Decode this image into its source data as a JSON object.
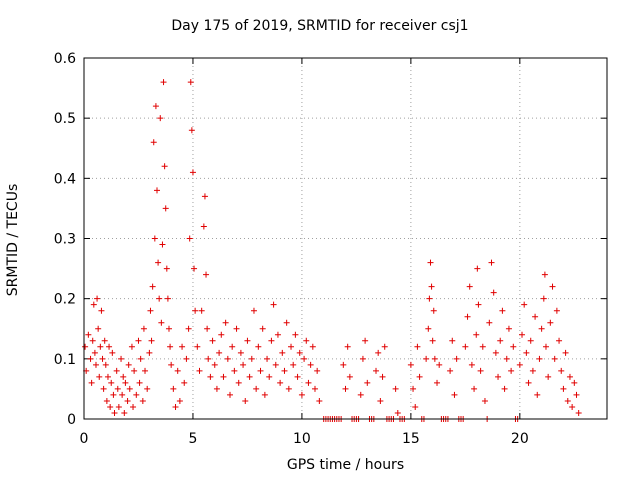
{
  "chart_data": {
    "type": "scatter",
    "title": "Day 175 of 2019, SRMTID for receiver csj1",
    "xlabel": "GPS time / hours",
    "ylabel": "SRMTID / TECUs",
    "xlim": [
      0,
      24
    ],
    "ylim": [
      0,
      0.6
    ],
    "xticks": [
      0,
      5,
      10,
      15,
      20
    ],
    "yticks": [
      0,
      0.1,
      0.2,
      0.3,
      0.4,
      0.5,
      0.6
    ],
    "xtick_labels": [
      "0",
      "5",
      "10",
      "15",
      "20"
    ],
    "ytick_labels": [
      "0",
      "0.1",
      "0.2",
      "0.3",
      "0.4",
      "0.5",
      "0.6"
    ],
    "grid": true,
    "marker": "+",
    "color": "#e00000",
    "series": [
      {
        "name": "SRMTID",
        "points": [
          [
            0.05,
            0.12
          ],
          [
            0.1,
            0.08
          ],
          [
            0.2,
            0.14
          ],
          [
            0.3,
            0.1
          ],
          [
            0.35,
            0.06
          ],
          [
            0.4,
            0.13
          ],
          [
            0.45,
            0.19
          ],
          [
            0.5,
            0.11
          ],
          [
            0.55,
            0.09
          ],
          [
            0.6,
            0.2
          ],
          [
            0.65,
            0.15
          ],
          [
            0.7,
            0.07
          ],
          [
            0.75,
            0.12
          ],
          [
            0.8,
            0.18
          ],
          [
            0.85,
            0.1
          ],
          [
            0.9,
            0.05
          ],
          [
            0.95,
            0.13
          ],
          [
            1.0,
            0.09
          ],
          [
            1.05,
            0.03
          ],
          [
            1.1,
            0.07
          ],
          [
            1.15,
            0.12
          ],
          [
            1.2,
            0.02
          ],
          [
            1.25,
            0.06
          ],
          [
            1.3,
            0.11
          ],
          [
            1.35,
            0.04
          ],
          [
            1.4,
            0.01
          ],
          [
            1.5,
            0.08
          ],
          [
            1.55,
            0.05
          ],
          [
            1.6,
            0.02
          ],
          [
            1.7,
            0.1
          ],
          [
            1.75,
            0.04
          ],
          [
            1.8,
            0.07
          ],
          [
            1.85,
            0.01
          ],
          [
            1.9,
            0.06
          ],
          [
            2.0,
            0.03
          ],
          [
            2.05,
            0.09
          ],
          [
            2.1,
            0.05
          ],
          [
            2.2,
            0.12
          ],
          [
            2.25,
            0.02
          ],
          [
            2.3,
            0.08
          ],
          [
            2.4,
            0.04
          ],
          [
            2.5,
            0.13
          ],
          [
            2.55,
            0.06
          ],
          [
            2.6,
            0.1
          ],
          [
            2.7,
            0.03
          ],
          [
            2.75,
            0.15
          ],
          [
            2.8,
            0.08
          ],
          [
            2.9,
            0.05
          ],
          [
            3.0,
            0.11
          ],
          [
            3.05,
            0.18
          ],
          [
            3.1,
            0.13
          ],
          [
            3.15,
            0.22
          ],
          [
            3.2,
            0.46
          ],
          [
            3.25,
            0.3
          ],
          [
            3.3,
            0.52
          ],
          [
            3.35,
            0.38
          ],
          [
            3.4,
            0.26
          ],
          [
            3.45,
            0.2
          ],
          [
            3.5,
            0.5
          ],
          [
            3.55,
            0.16
          ],
          [
            3.6,
            0.29
          ],
          [
            3.65,
            0.56
          ],
          [
            3.7,
            0.42
          ],
          [
            3.75,
            0.35
          ],
          [
            3.8,
            0.25
          ],
          [
            3.85,
            0.2
          ],
          [
            3.9,
            0.15
          ],
          [
            3.95,
            0.12
          ],
          [
            4.0,
            0.09
          ],
          [
            4.1,
            0.05
          ],
          [
            4.2,
            0.02
          ],
          [
            4.3,
            0.08
          ],
          [
            4.4,
            0.03
          ],
          [
            4.5,
            0.12
          ],
          [
            4.6,
            0.06
          ],
          [
            4.7,
            0.1
          ],
          [
            4.8,
            0.15
          ],
          [
            4.85,
            0.3
          ],
          [
            4.9,
            0.56
          ],
          [
            4.95,
            0.48
          ],
          [
            5.0,
            0.41
          ],
          [
            5.05,
            0.25
          ],
          [
            5.1,
            0.18
          ],
          [
            5.2,
            0.12
          ],
          [
            5.3,
            0.08
          ],
          [
            5.4,
            0.18
          ],
          [
            5.5,
            0.32
          ],
          [
            5.55,
            0.37
          ],
          [
            5.6,
            0.24
          ],
          [
            5.65,
            0.15
          ],
          [
            5.7,
            0.1
          ],
          [
            5.8,
            0.07
          ],
          [
            5.9,
            0.13
          ],
          [
            6.0,
            0.09
          ],
          [
            6.1,
            0.05
          ],
          [
            6.2,
            0.11
          ],
          [
            6.3,
            0.14
          ],
          [
            6.4,
            0.07
          ],
          [
            6.5,
            0.16
          ],
          [
            6.6,
            0.1
          ],
          [
            6.7,
            0.04
          ],
          [
            6.8,
            0.12
          ],
          [
            6.9,
            0.08
          ],
          [
            7.0,
            0.15
          ],
          [
            7.1,
            0.06
          ],
          [
            7.2,
            0.11
          ],
          [
            7.3,
            0.09
          ],
          [
            7.4,
            0.03
          ],
          [
            7.5,
            0.13
          ],
          [
            7.6,
            0.07
          ],
          [
            7.7,
            0.1
          ],
          [
            7.8,
            0.18
          ],
          [
            7.9,
            0.05
          ],
          [
            8.0,
            0.12
          ],
          [
            8.1,
            0.08
          ],
          [
            8.2,
            0.15
          ],
          [
            8.3,
            0.04
          ],
          [
            8.4,
            0.1
          ],
          [
            8.5,
            0.07
          ],
          [
            8.6,
            0.13
          ],
          [
            8.7,
            0.19
          ],
          [
            8.8,
            0.09
          ],
          [
            8.9,
            0.14
          ],
          [
            9.0,
            0.06
          ],
          [
            9.1,
            0.11
          ],
          [
            9.2,
            0.08
          ],
          [
            9.3,
            0.16
          ],
          [
            9.4,
            0.05
          ],
          [
            9.5,
            0.12
          ],
          [
            9.6,
            0.09
          ],
          [
            9.7,
            0.14
          ],
          [
            9.8,
            0.07
          ],
          [
            9.9,
            0.11
          ],
          [
            10.0,
            0.04
          ],
          [
            10.1,
            0.1
          ],
          [
            10.2,
            0.13
          ],
          [
            10.3,
            0.06
          ],
          [
            10.4,
            0.09
          ],
          [
            10.5,
            0.12
          ],
          [
            10.6,
            0.05
          ],
          [
            10.7,
            0.08
          ],
          [
            10.8,
            0.03
          ],
          [
            11.0,
            0.0
          ],
          [
            11.1,
            0.0
          ],
          [
            11.2,
            0.0
          ],
          [
            11.3,
            0.0
          ],
          [
            11.4,
            0.0
          ],
          [
            11.5,
            0.0
          ],
          [
            11.6,
            0.0
          ],
          [
            11.7,
            0.0
          ],
          [
            11.8,
            0.0
          ],
          [
            11.9,
            0.09
          ],
          [
            12.0,
            0.05
          ],
          [
            12.1,
            0.12
          ],
          [
            12.2,
            0.07
          ],
          [
            12.3,
            0.0
          ],
          [
            12.4,
            0.0
          ],
          [
            12.5,
            0.0
          ],
          [
            12.6,
            0.0
          ],
          [
            12.7,
            0.04
          ],
          [
            12.8,
            0.1
          ],
          [
            12.9,
            0.13
          ],
          [
            13.0,
            0.06
          ],
          [
            13.1,
            0.0
          ],
          [
            13.2,
            0.0
          ],
          [
            13.3,
            0.0
          ],
          [
            13.4,
            0.08
          ],
          [
            13.5,
            0.11
          ],
          [
            13.6,
            0.03
          ],
          [
            13.7,
            0.07
          ],
          [
            13.8,
            0.12
          ],
          [
            13.9,
            0.0
          ],
          [
            14.0,
            0.0
          ],
          [
            14.1,
            0.0
          ],
          [
            14.2,
            0.0
          ],
          [
            14.3,
            0.05
          ],
          [
            14.4,
            0.01
          ],
          [
            14.5,
            0.0
          ],
          [
            14.6,
            0.0
          ],
          [
            14.7,
            0.0
          ],
          [
            15.0,
            0.09
          ],
          [
            15.1,
            0.05
          ],
          [
            15.2,
            0.02
          ],
          [
            15.3,
            0.12
          ],
          [
            15.4,
            0.07
          ],
          [
            15.5,
            0.0
          ],
          [
            15.6,
            0.0
          ],
          [
            15.7,
            0.1
          ],
          [
            15.8,
            0.15
          ],
          [
            15.85,
            0.2
          ],
          [
            15.9,
            0.26
          ],
          [
            15.95,
            0.22
          ],
          [
            16.0,
            0.13
          ],
          [
            16.05,
            0.18
          ],
          [
            16.1,
            0.1
          ],
          [
            16.2,
            0.06
          ],
          [
            16.3,
            0.09
          ],
          [
            16.4,
            0.0
          ],
          [
            16.5,
            0.0
          ],
          [
            16.6,
            0.0
          ],
          [
            16.7,
            0.0
          ],
          [
            16.8,
            0.08
          ],
          [
            16.9,
            0.13
          ],
          [
            17.0,
            0.04
          ],
          [
            17.1,
            0.1
          ],
          [
            17.2,
            0.0
          ],
          [
            17.3,
            0.0
          ],
          [
            17.4,
            0.0
          ],
          [
            17.5,
            0.12
          ],
          [
            17.6,
            0.17
          ],
          [
            17.7,
            0.22
          ],
          [
            17.8,
            0.09
          ],
          [
            17.9,
            0.05
          ],
          [
            18.0,
            0.14
          ],
          [
            18.05,
            0.25
          ],
          [
            18.1,
            0.19
          ],
          [
            18.2,
            0.08
          ],
          [
            18.3,
            0.12
          ],
          [
            18.4,
            0.03
          ],
          [
            18.5,
            0.0
          ],
          [
            18.6,
            0.16
          ],
          [
            18.7,
            0.26
          ],
          [
            18.8,
            0.21
          ],
          [
            18.9,
            0.11
          ],
          [
            19.0,
            0.07
          ],
          [
            19.1,
            0.13
          ],
          [
            19.2,
            0.18
          ],
          [
            19.3,
            0.05
          ],
          [
            19.4,
            0.1
          ],
          [
            19.5,
            0.15
          ],
          [
            19.6,
            0.08
          ],
          [
            19.7,
            0.12
          ],
          [
            19.8,
            0.0
          ],
          [
            19.9,
            0.0
          ],
          [
            20.0,
            0.09
          ],
          [
            20.1,
            0.14
          ],
          [
            20.2,
            0.19
          ],
          [
            20.3,
            0.11
          ],
          [
            20.4,
            0.06
          ],
          [
            20.5,
            0.13
          ],
          [
            20.6,
            0.08
          ],
          [
            20.7,
            0.17
          ],
          [
            20.8,
            0.04
          ],
          [
            20.9,
            0.1
          ],
          [
            21.0,
            0.15
          ],
          [
            21.1,
            0.2
          ],
          [
            21.15,
            0.24
          ],
          [
            21.2,
            0.12
          ],
          [
            21.3,
            0.07
          ],
          [
            21.4,
            0.16
          ],
          [
            21.5,
            0.22
          ],
          [
            21.6,
            0.1
          ],
          [
            21.7,
            0.18
          ],
          [
            21.8,
            0.13
          ],
          [
            21.9,
            0.08
          ],
          [
            22.0,
            0.05
          ],
          [
            22.1,
            0.11
          ],
          [
            22.2,
            0.03
          ],
          [
            22.3,
            0.07
          ],
          [
            22.4,
            0.02
          ],
          [
            22.5,
            0.06
          ],
          [
            22.6,
            0.04
          ],
          [
            22.7,
            0.01
          ]
        ]
      }
    ]
  }
}
